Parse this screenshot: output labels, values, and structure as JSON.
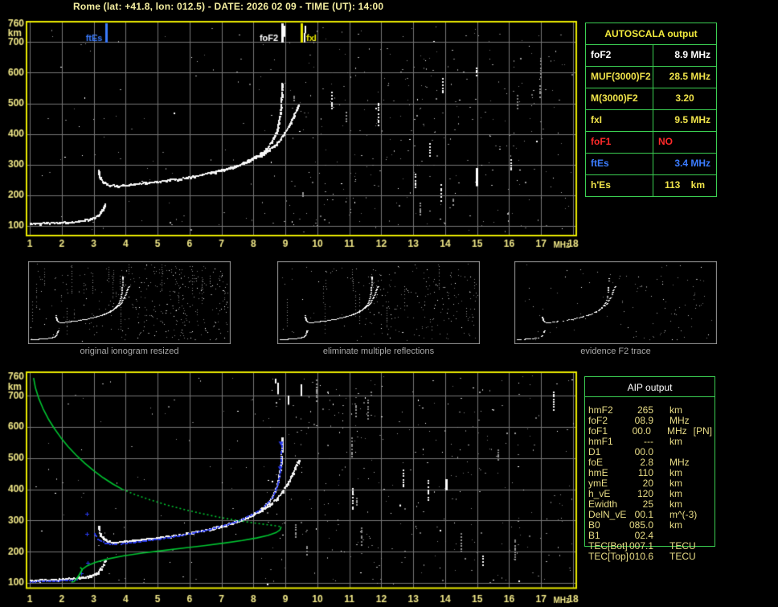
{
  "header": {
    "title": "Rome (lat: +41.8, lon: 012.5) - DATE: 2026 02 09 - TIME (UT): 14:00"
  },
  "colors": {
    "background": "#000000",
    "title": "#f4eea0",
    "axis": "#f0e787",
    "plot_border": "#e9e900",
    "grid": "#777777",
    "white": "#ffffff",
    "yellow": "#efe24a",
    "red": "#ff2a2a",
    "blue": "#3b7cff",
    "trace_blue": "#2a3bee",
    "curve_green": "#00c531",
    "table_border_green": "#3bcf52",
    "thumb_border": "#9a9a9a",
    "caption_gray": "#a8a8a8"
  },
  "autoscala_table": {
    "title": "AUTOSCALA output",
    "rows": [
      {
        "label": "foF2",
        "value": "8.9 MHz",
        "color": "white"
      },
      {
        "label": "MUF(3000)F2",
        "value": "28.5 MHz",
        "color": "yellow"
      },
      {
        "label": "M(3000)F2",
        "value": "3.20",
        "color": "yellow"
      },
      {
        "label": "fxI",
        "value": "9.5 MHz",
        "color": "yellow"
      },
      {
        "label": "foF1",
        "value": "NO",
        "color": "red"
      },
      {
        "label": "ftEs",
        "value": "3.4 MHz",
        "color": "blue"
      },
      {
        "label": "h'Es",
        "value": "113    km",
        "color": "yellow"
      }
    ]
  },
  "aip_table": {
    "title": "AIP output",
    "rows": [
      {
        "label": "hmF2",
        "value": "265",
        "unit": "km",
        "extra": ""
      },
      {
        "label": "foF2",
        "value": "08.9",
        "unit": "MHz",
        "extra": ""
      },
      {
        "label": "foF1",
        "value": "00.0",
        "unit": "MHz",
        "extra": "[PN]"
      },
      {
        "label": "hmF1",
        "value": "---",
        "unit": "km",
        "extra": ""
      },
      {
        "label": "D1",
        "value": "00.0",
        "unit": "",
        "extra": ""
      },
      {
        "label": "foE",
        "value": "2.8",
        "unit": "MHz",
        "extra": ""
      },
      {
        "label": "hmE",
        "value": "110",
        "unit": "km",
        "extra": ""
      },
      {
        "label": "ymE",
        "value": "20",
        "unit": "km",
        "extra": ""
      },
      {
        "label": "h_vE",
        "value": "120",
        "unit": "km",
        "extra": ""
      },
      {
        "label": "Ewidth",
        "value": "25",
        "unit": "km",
        "extra": ""
      },
      {
        "label": "DelN_vE",
        "value": "00.1",
        "unit": "m^(-3)",
        "extra": ""
      },
      {
        "label": "B0",
        "value": "085.0",
        "unit": "km",
        "extra": ""
      },
      {
        "label": "B1",
        "value": "02.4",
        "unit": "",
        "extra": ""
      },
      {
        "label": "TEC[Bot]",
        "value": "007.1",
        "unit": "TECU",
        "extra": ""
      },
      {
        "label": "TEC[Top]",
        "value": "010.6",
        "unit": "TECU",
        "extra": ""
      }
    ]
  },
  "thumbnails": [
    {
      "caption": "original ionogram resized"
    },
    {
      "caption": "eliminate multiple reflections"
    },
    {
      "caption": "evidence F2 trace"
    }
  ],
  "chart_data": [
    {
      "type": "scatter",
      "name": "recorded-ionogram",
      "xlabel": "MHz",
      "ylabel": "km",
      "xunit": "MHz",
      "yunit": "km",
      "xlim": [
        1,
        18
      ],
      "ylim": [
        100,
        760
      ],
      "xticks": [
        1,
        2,
        3,
        4,
        5,
        6,
        7,
        8,
        9,
        10,
        11,
        12,
        13,
        14,
        15,
        16,
        17,
        18
      ],
      "yticks": [
        760,
        700,
        600,
        500,
        400,
        300,
        200,
        100
      ],
      "grid": true,
      "markers": [
        {
          "label": "ftEs",
          "x": 3.4,
          "color": "blue",
          "side": "left"
        },
        {
          "label": "foF2",
          "x": 8.9,
          "color": "white",
          "side": "left"
        },
        {
          "label": "fxI",
          "x": 9.5,
          "color": "yellow",
          "side": "right"
        }
      ],
      "series": [
        {
          "name": "Es-layer-echo",
          "color": "white",
          "points": [
            [
              1.0,
              107
            ],
            [
              1.15,
              107
            ],
            [
              1.3,
              108
            ],
            [
              1.5,
              108
            ],
            [
              1.7,
              109
            ],
            [
              1.9,
              110
            ],
            [
              2.1,
              112
            ],
            [
              2.3,
              113
            ],
            [
              2.5,
              115
            ],
            [
              2.7,
              118
            ],
            [
              2.85,
              121
            ],
            [
              3.0,
              126
            ],
            [
              3.1,
              132
            ],
            [
              3.2,
              143
            ],
            [
              3.28,
              157
            ],
            [
              3.33,
              170
            ]
          ]
        },
        {
          "name": "F-trace-ordinary",
          "color": "white",
          "points": [
            [
              3.13,
              280
            ],
            [
              3.16,
              265
            ],
            [
              3.2,
              252
            ],
            [
              3.28,
              242
            ],
            [
              3.38,
              235
            ],
            [
              3.5,
              231
            ],
            [
              3.7,
              230
            ],
            [
              3.95,
              232
            ],
            [
              4.25,
              235
            ],
            [
              4.6,
              239
            ],
            [
              4.95,
              243
            ],
            [
              5.3,
              248
            ],
            [
              5.65,
              253
            ],
            [
              6.0,
              259
            ],
            [
              6.35,
              266
            ],
            [
              6.7,
              274
            ],
            [
              7.05,
              283
            ],
            [
              7.4,
              294
            ],
            [
              7.7,
              306
            ],
            [
              7.95,
              319
            ],
            [
              8.18,
              333
            ],
            [
              8.38,
              350
            ],
            [
              8.53,
              369
            ],
            [
              8.65,
              392
            ],
            [
              8.74,
              420
            ],
            [
              8.8,
              452
            ],
            [
              8.84,
              487
            ],
            [
              8.86,
              522
            ],
            [
              8.87,
              552
            ],
            [
              8.875,
              565
            ]
          ]
        },
        {
          "name": "F-trace-extraordinary",
          "color": "white",
          "points": [
            [
              6.6,
              272
            ],
            [
              6.95,
              280
            ],
            [
              7.3,
              290
            ],
            [
              7.65,
              302
            ],
            [
              7.95,
              316
            ],
            [
              8.25,
              332
            ],
            [
              8.5,
              350
            ],
            [
              8.72,
              370
            ],
            [
              8.9,
              393
            ],
            [
              9.05,
              418
            ],
            [
              9.18,
              444
            ],
            [
              9.28,
              468
            ],
            [
              9.35,
              484
            ],
            [
              9.4,
              492
            ]
          ]
        }
      ]
    },
    {
      "type": "scatter",
      "name": "autoscaled-ionogram-with-profile",
      "xlabel": "MHz",
      "ylabel": "km",
      "xunit": "MHz",
      "yunit": "km",
      "xlim": [
        1,
        18
      ],
      "ylim": [
        100,
        760
      ],
      "xticks": [
        1,
        2,
        3,
        4,
        5,
        6,
        7,
        8,
        9,
        10,
        11,
        12,
        13,
        14,
        15,
        16,
        17,
        18
      ],
      "yticks": [
        760,
        700,
        600,
        500,
        400,
        300,
        200,
        100
      ],
      "grid": true,
      "echo_traces": "same ionogram echoes as top chart",
      "series": [
        {
          "name": "autoscaled-trace-Es",
          "color": "trace_blue",
          "points": [
            [
              1.0,
              106
            ],
            [
              1.15,
              106
            ],
            [
              1.3,
              107
            ],
            [
              1.5,
              107
            ],
            [
              1.7,
              108
            ],
            [
              1.9,
              109
            ],
            [
              2.1,
              110
            ],
            [
              2.3,
              111
            ],
            [
              2.45,
              112
            ]
          ]
        },
        {
          "name": "autoscaled-trace-F2",
          "color": "trace_blue",
          "points": [
            [
              3.02,
              260
            ],
            [
              3.06,
              251
            ],
            [
              3.12,
              243
            ],
            [
              3.22,
              236
            ],
            [
              3.35,
              230
            ],
            [
              3.5,
              227
            ],
            [
              3.7,
              226
            ],
            [
              3.9,
              228
            ],
            [
              4.15,
              231
            ],
            [
              4.45,
              235
            ],
            [
              4.75,
              239
            ],
            [
              5.05,
              243
            ],
            [
              5.35,
              248
            ],
            [
              5.65,
              253
            ],
            [
              5.95,
              259
            ],
            [
              6.25,
              265
            ],
            [
              6.55,
              272
            ],
            [
              6.85,
              280
            ],
            [
              7.15,
              289
            ],
            [
              7.45,
              299
            ],
            [
              7.7,
              310
            ],
            [
              7.95,
              322
            ],
            [
              8.18,
              336
            ],
            [
              8.38,
              353
            ],
            [
              8.55,
              373
            ],
            [
              8.68,
              398
            ],
            [
              8.77,
              428
            ],
            [
              8.82,
              462
            ],
            [
              8.85,
              498
            ],
            [
              8.86,
              530
            ],
            [
              8.865,
              552
            ]
          ]
        },
        {
          "name": "isolated-scaled-points",
          "color": "trace_blue",
          "style": "plus",
          "points": [
            [
              2.78,
              322
            ],
            [
              2.78,
              258
            ],
            [
              2.8,
              165
            ],
            [
              2.6,
              131
            ]
          ]
        },
        {
          "name": "trace-end-markers",
          "color": "trace_blue",
          "style": "triangle",
          "points": [
            [
              8.86,
              548
            ],
            [
              8.84,
              468
            ]
          ]
        },
        {
          "name": "electron-density-profile-topside",
          "color": "curve_green",
          "style": "solid",
          "points": [
            [
              1.12,
              757
            ],
            [
              1.18,
              725
            ],
            [
              1.28,
              692
            ],
            [
              1.42,
              658
            ],
            [
              1.58,
              626
            ],
            [
              1.77,
              595
            ],
            [
              1.98,
              565
            ],
            [
              2.2,
              537
            ],
            [
              2.45,
              510
            ],
            [
              2.72,
              484
            ],
            [
              3.0,
              460
            ],
            [
              3.3,
              437
            ],
            [
              3.6,
              417
            ],
            [
              3.9,
              400
            ]
          ]
        },
        {
          "name": "electron-density-profile-dotted",
          "color": "curve_green",
          "style": "dotted",
          "points": [
            [
              3.9,
              400
            ],
            [
              4.3,
              383
            ],
            [
              4.75,
              367
            ],
            [
              5.25,
              351
            ],
            [
              5.8,
              336
            ],
            [
              6.35,
              323
            ],
            [
              6.9,
              311
            ],
            [
              7.45,
              301
            ],
            [
              7.95,
              293
            ],
            [
              8.4,
              287
            ],
            [
              8.7,
              283
            ],
            [
              8.87,
              280
            ]
          ]
        },
        {
          "name": "electron-density-profile-bottomside",
          "color": "curve_green",
          "style": "solid",
          "points": [
            [
              8.87,
              280
            ],
            [
              8.83,
              270
            ],
            [
              8.7,
              261
            ],
            [
              8.45,
              252
            ],
            [
              8.1,
              244
            ],
            [
              7.65,
              236
            ],
            [
              7.1,
              228
            ],
            [
              6.5,
              220
            ],
            [
              5.85,
              212
            ],
            [
              5.2,
              204
            ],
            [
              4.55,
              196
            ],
            [
              3.95,
              187
            ],
            [
              3.45,
              177
            ],
            [
              3.05,
              166
            ],
            [
              2.8,
              155
            ],
            [
              2.65,
              144
            ],
            [
              2.6,
              134
            ],
            [
              2.52,
              120
            ],
            [
              2.44,
              110
            ],
            [
              2.38,
              104
            ],
            [
              2.3,
              103
            ]
          ]
        },
        {
          "name": "E-valley-spike",
          "color": "curve_green",
          "style": "solid",
          "points": [
            [
              2.46,
              112
            ],
            [
              2.56,
              128
            ],
            [
              2.64,
              143
            ],
            [
              2.58,
              150
            ]
          ]
        }
      ]
    }
  ]
}
